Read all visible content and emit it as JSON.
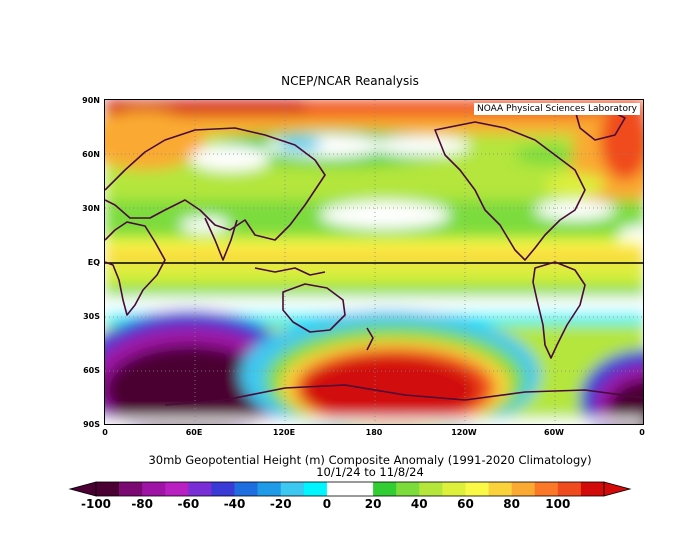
{
  "header": {
    "title": "NCEP/NCAR Reanalysis"
  },
  "map": {
    "lab_label": "NOAA Physical Sciences Laboratory",
    "lat_labels": [
      "90N",
      "60N",
      "30N",
      "EQ",
      "30S",
      "60S",
      "90S"
    ],
    "lon_labels": [
      "0",
      "60E",
      "120E",
      "180",
      "120W",
      "60W",
      "0"
    ]
  },
  "caption": {
    "line1": "30mb Geopotential Height (m) Composite Anomaly (1991-2020 Climatology)",
    "line2": "10/1/24  to 11/8/24"
  },
  "colorbar": {
    "tick_labels": [
      "-100",
      "-80",
      "-60",
      "-40",
      "-20",
      "0",
      "20",
      "40",
      "60",
      "80",
      "100"
    ],
    "colors": [
      "#4b0033",
      "#7a0a72",
      "#9e14a4",
      "#b820c2",
      "#7a2ed6",
      "#3a3ad6",
      "#1e6ee0",
      "#1e9ae6",
      "#3cc8f0",
      "#00f5ff",
      "#ffffff",
      "#ffffff",
      "#32cd32",
      "#7cdc3c",
      "#b4e63c",
      "#dcf03c",
      "#fafa46",
      "#fad23c",
      "#faaa32",
      "#fa7828",
      "#f04b1e",
      "#d20a0a"
    ]
  }
}
